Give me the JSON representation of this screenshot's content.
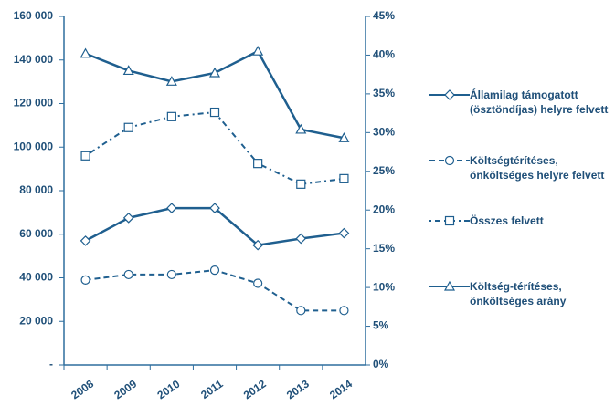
{
  "chart_data": {
    "type": "line",
    "categories": [
      "2008",
      "2009",
      "2010",
      "2011",
      "2012",
      "2013",
      "2014"
    ],
    "series": [
      {
        "name": "Államilag támogatott (ösztöndíjas) helyre felvett",
        "color": "#1f5f8f",
        "dash": "solid",
        "marker": "diamond",
        "values": [
          57000,
          67500,
          72000,
          72000,
          55000,
          58000,
          60500
        ]
      },
      {
        "name": "Költségtérítéses, önköltséges helyre felvett",
        "color": "#1f5f8f",
        "dash": "dashed",
        "marker": "circle",
        "values": [
          39000,
          41500,
          41500,
          43500,
          37500,
          25000,
          25000
        ]
      },
      {
        "name": "Összes felvett",
        "color": "#1f5f8f",
        "dash": "dashdot",
        "marker": "square",
        "values": [
          96000,
          109000,
          114000,
          116000,
          92500,
          83000,
          85500
        ]
      },
      {
        "name": "Költség-térítéses, önköltséges arány",
        "color": "#1f5f8f",
        "dash": "solid",
        "marker": "triangle",
        "axis": "y2",
        "values": [
          40.2,
          38.0,
          36.6,
          37.7,
          40.5,
          30.4,
          29.3
        ]
      }
    ],
    "ylim": [
      0,
      160000
    ],
    "yticks": [
      {
        "value": 0,
        "label": "-"
      },
      {
        "value": 20000,
        "label": "20 000"
      },
      {
        "value": 40000,
        "label": "40 000"
      },
      {
        "value": 60000,
        "label": "60 000"
      },
      {
        "value": 80000,
        "label": "80 000"
      },
      {
        "value": 100000,
        "label": "100 000"
      },
      {
        "value": 120000,
        "label": "120 000"
      },
      {
        "value": 140000,
        "label": "140 000"
      },
      {
        "value": 160000,
        "label": "160 000"
      }
    ],
    "y2lim": [
      0,
      45
    ],
    "y2ticks": [
      {
        "value": 0,
        "label": "0%"
      },
      {
        "value": 5,
        "label": "5%"
      },
      {
        "value": 10,
        "label": "10%"
      },
      {
        "value": 15,
        "label": "15%"
      },
      {
        "value": 20,
        "label": "20%"
      },
      {
        "value": 25,
        "label": "25%"
      },
      {
        "value": 30,
        "label": "30%"
      },
      {
        "value": 35,
        "label": "35%"
      },
      {
        "value": 40,
        "label": "40%"
      },
      {
        "value": 45,
        "label": "45%"
      }
    ],
    "legend": "right"
  }
}
